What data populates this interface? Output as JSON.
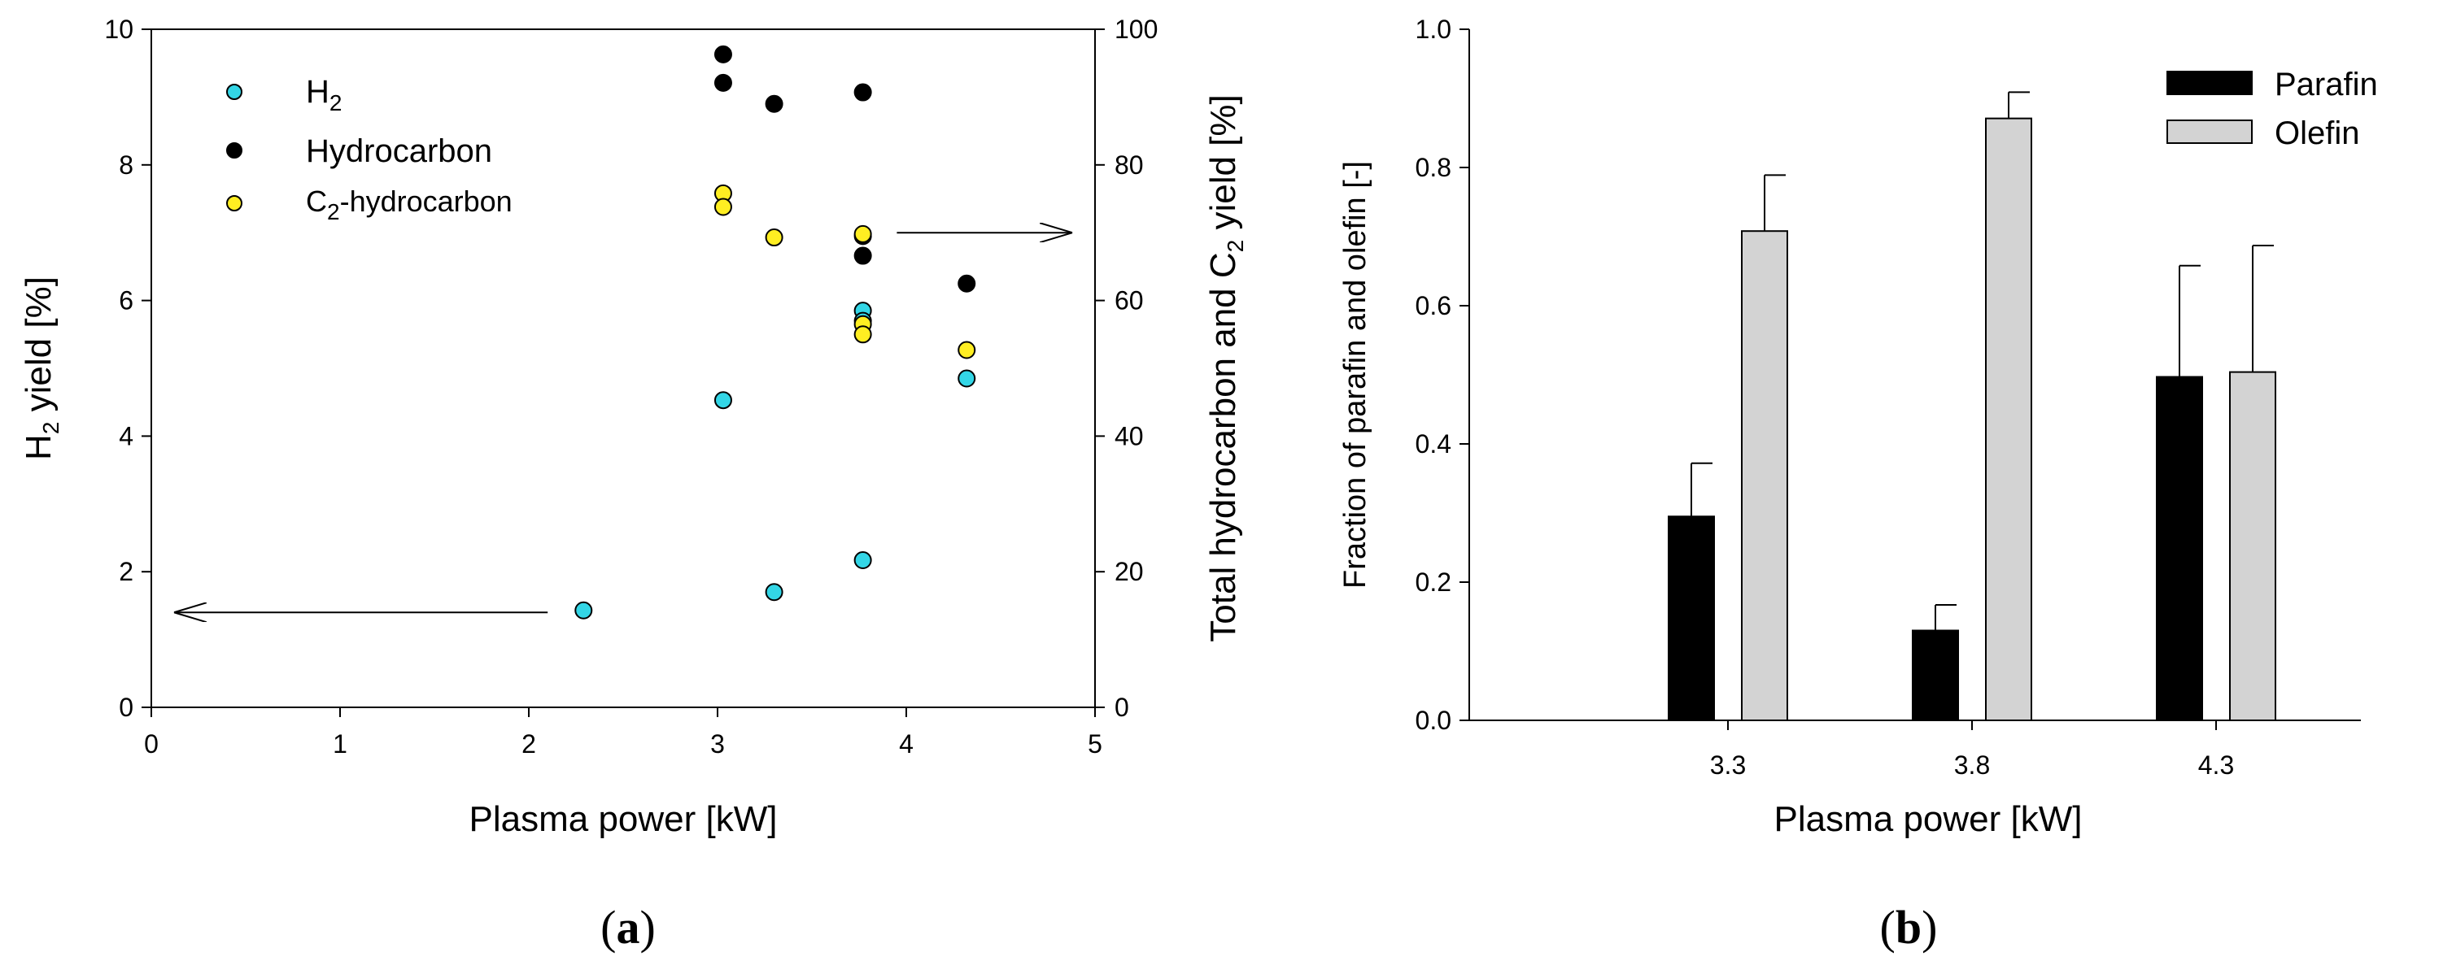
{
  "chart_data": [
    {
      "panel": "a",
      "type": "scatter",
      "panel_label_open": "(",
      "panel_label_letter": "a",
      "panel_label_close": ")",
      "xlabel": "Plasma power [kW]",
      "ylabel_left": {
        "prefix": "H",
        "sub": "2",
        "suffix": " yield [%]"
      },
      "ylabel_right": {
        "prefix": "Total hydrocarbon and C",
        "sub": "2",
        "suffix": " yield [%]"
      },
      "xlim": [
        0,
        5
      ],
      "ylim_left": [
        0,
        10
      ],
      "ylim_right": [
        0,
        100
      ],
      "xticks": [
        "0",
        "1",
        "2",
        "3",
        "4",
        "5"
      ],
      "yticks_left": [
        "0",
        "2",
        "4",
        "6",
        "8",
        "10"
      ],
      "yticks_right": [
        "0",
        "20",
        "40",
        "60",
        "80",
        "100"
      ],
      "series": [
        {
          "name": "H2",
          "legend": {
            "prefix": "H",
            "sub": "2",
            "suffix": ""
          },
          "axis": "left",
          "color": "#33d6e6",
          "x": [
            2.29,
            3.03,
            3.3,
            3.77,
            3.77,
            3.77,
            4.32
          ],
          "y": [
            1.43,
            4.53,
            1.7,
            2.17,
            5.85,
            5.7,
            4.85
          ]
        },
        {
          "name": "Hydrocarbon",
          "legend": {
            "prefix": "Hydrocarbon",
            "sub": "",
            "suffix": ""
          },
          "axis": "right",
          "color": "#000000",
          "x": [
            3.03,
            3.03,
            3.3,
            3.77,
            3.77,
            3.77,
            4.32
          ],
          "y": [
            96.3,
            92.1,
            89.0,
            90.7,
            69.5,
            66.6,
            62.5
          ]
        },
        {
          "name": "C2-hydrocarbon",
          "legend": {
            "prefix": "C",
            "sub": "2",
            "suffix": "-hydrocarbon"
          },
          "axis": "right",
          "color": "#ffee22",
          "x": [
            3.03,
            3.03,
            3.3,
            3.77,
            3.77,
            3.77,
            4.32
          ],
          "y": [
            75.8,
            73.8,
            69.3,
            69.8,
            56.5,
            55.0,
            52.7
          ]
        }
      ],
      "arrows": [
        {
          "from": [
            2.1,
            1.4
          ],
          "to": [
            0.12,
            1.4
          ],
          "axis": "left"
        },
        {
          "from": [
            3.95,
            70
          ],
          "to": [
            4.88,
            70
          ],
          "axis": "right"
        }
      ]
    },
    {
      "panel": "b",
      "type": "bar",
      "panel_label_open": "(",
      "panel_label_letter": "b",
      "panel_label_close": ")",
      "xlabel": "Plasma power [kW]",
      "ylabel": "Fraction of parafin and olefin [-]",
      "ylim": [
        0,
        1.0
      ],
      "yticks": [
        "0.0",
        "0.2",
        "0.4",
        "0.6",
        "0.8",
        "1.0"
      ],
      "categories": [
        "3.3",
        "3.8",
        "4.3"
      ],
      "series": [
        {
          "name": "Parafin",
          "color": "#000000",
          "values": [
            0.295,
            0.13,
            0.497
          ],
          "errors": [
            0.077,
            0.037,
            0.161
          ]
        },
        {
          "name": "Olefin",
          "color": "#d3d3d3",
          "values": [
            0.708,
            0.871,
            0.504
          ],
          "errors": [
            0.081,
            0.038,
            0.183
          ]
        }
      ]
    }
  ]
}
